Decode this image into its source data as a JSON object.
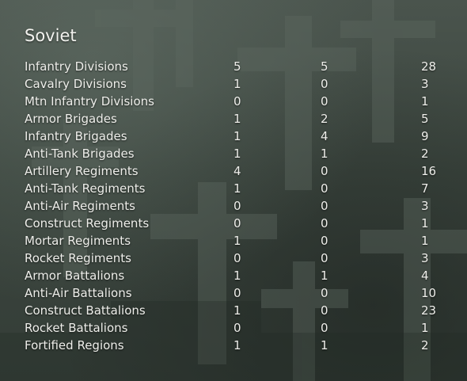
{
  "title": "Soviet",
  "rows": [
    {
      "label": "Infantry Divisions",
      "a": "5",
      "b": "5",
      "c": "28"
    },
    {
      "label": "Cavalry Divisions",
      "a": "1",
      "b": "0",
      "c": "3"
    },
    {
      "label": "Mtn Infantry Divisions",
      "a": "0",
      "b": "0",
      "c": "1"
    },
    {
      "label": "Armor Brigades",
      "a": "1",
      "b": "2",
      "c": "5"
    },
    {
      "label": "Infantry Brigades",
      "a": "1",
      "b": "4",
      "c": "9"
    },
    {
      "label": "Anti-Tank Brigades",
      "a": "1",
      "b": "1",
      "c": "2"
    },
    {
      "label": "Artillery Regiments",
      "a": "4",
      "b": "0",
      "c": "16"
    },
    {
      "label": "Anti-Tank Regiments",
      "a": "1",
      "b": "0",
      "c": "7"
    },
    {
      "label": "Anti-Air Regiments",
      "a": "0",
      "b": "0",
      "c": "3"
    },
    {
      "label": "Construct Regiments",
      "a": "0",
      "b": "0",
      "c": "1"
    },
    {
      "label": "Mortar Regiments",
      "a": "1",
      "b": "0",
      "c": "1"
    },
    {
      "label": "Rocket Regiments",
      "a": "0",
      "b": "0",
      "c": "3"
    },
    {
      "label": "Armor Battalions",
      "a": "1",
      "b": "1",
      "c": "4"
    },
    {
      "label": "Anti-Air Battalions",
      "a": "0",
      "b": "0",
      "c": "10"
    },
    {
      "label": "Construct Battalions",
      "a": "1",
      "b": "0",
      "c": "23"
    },
    {
      "label": "Rocket Battalions",
      "a": "0",
      "b": "0",
      "c": "1"
    },
    {
      "label": "Fortified Regions",
      "a": "1",
      "b": "1",
      "c": "2"
    }
  ]
}
